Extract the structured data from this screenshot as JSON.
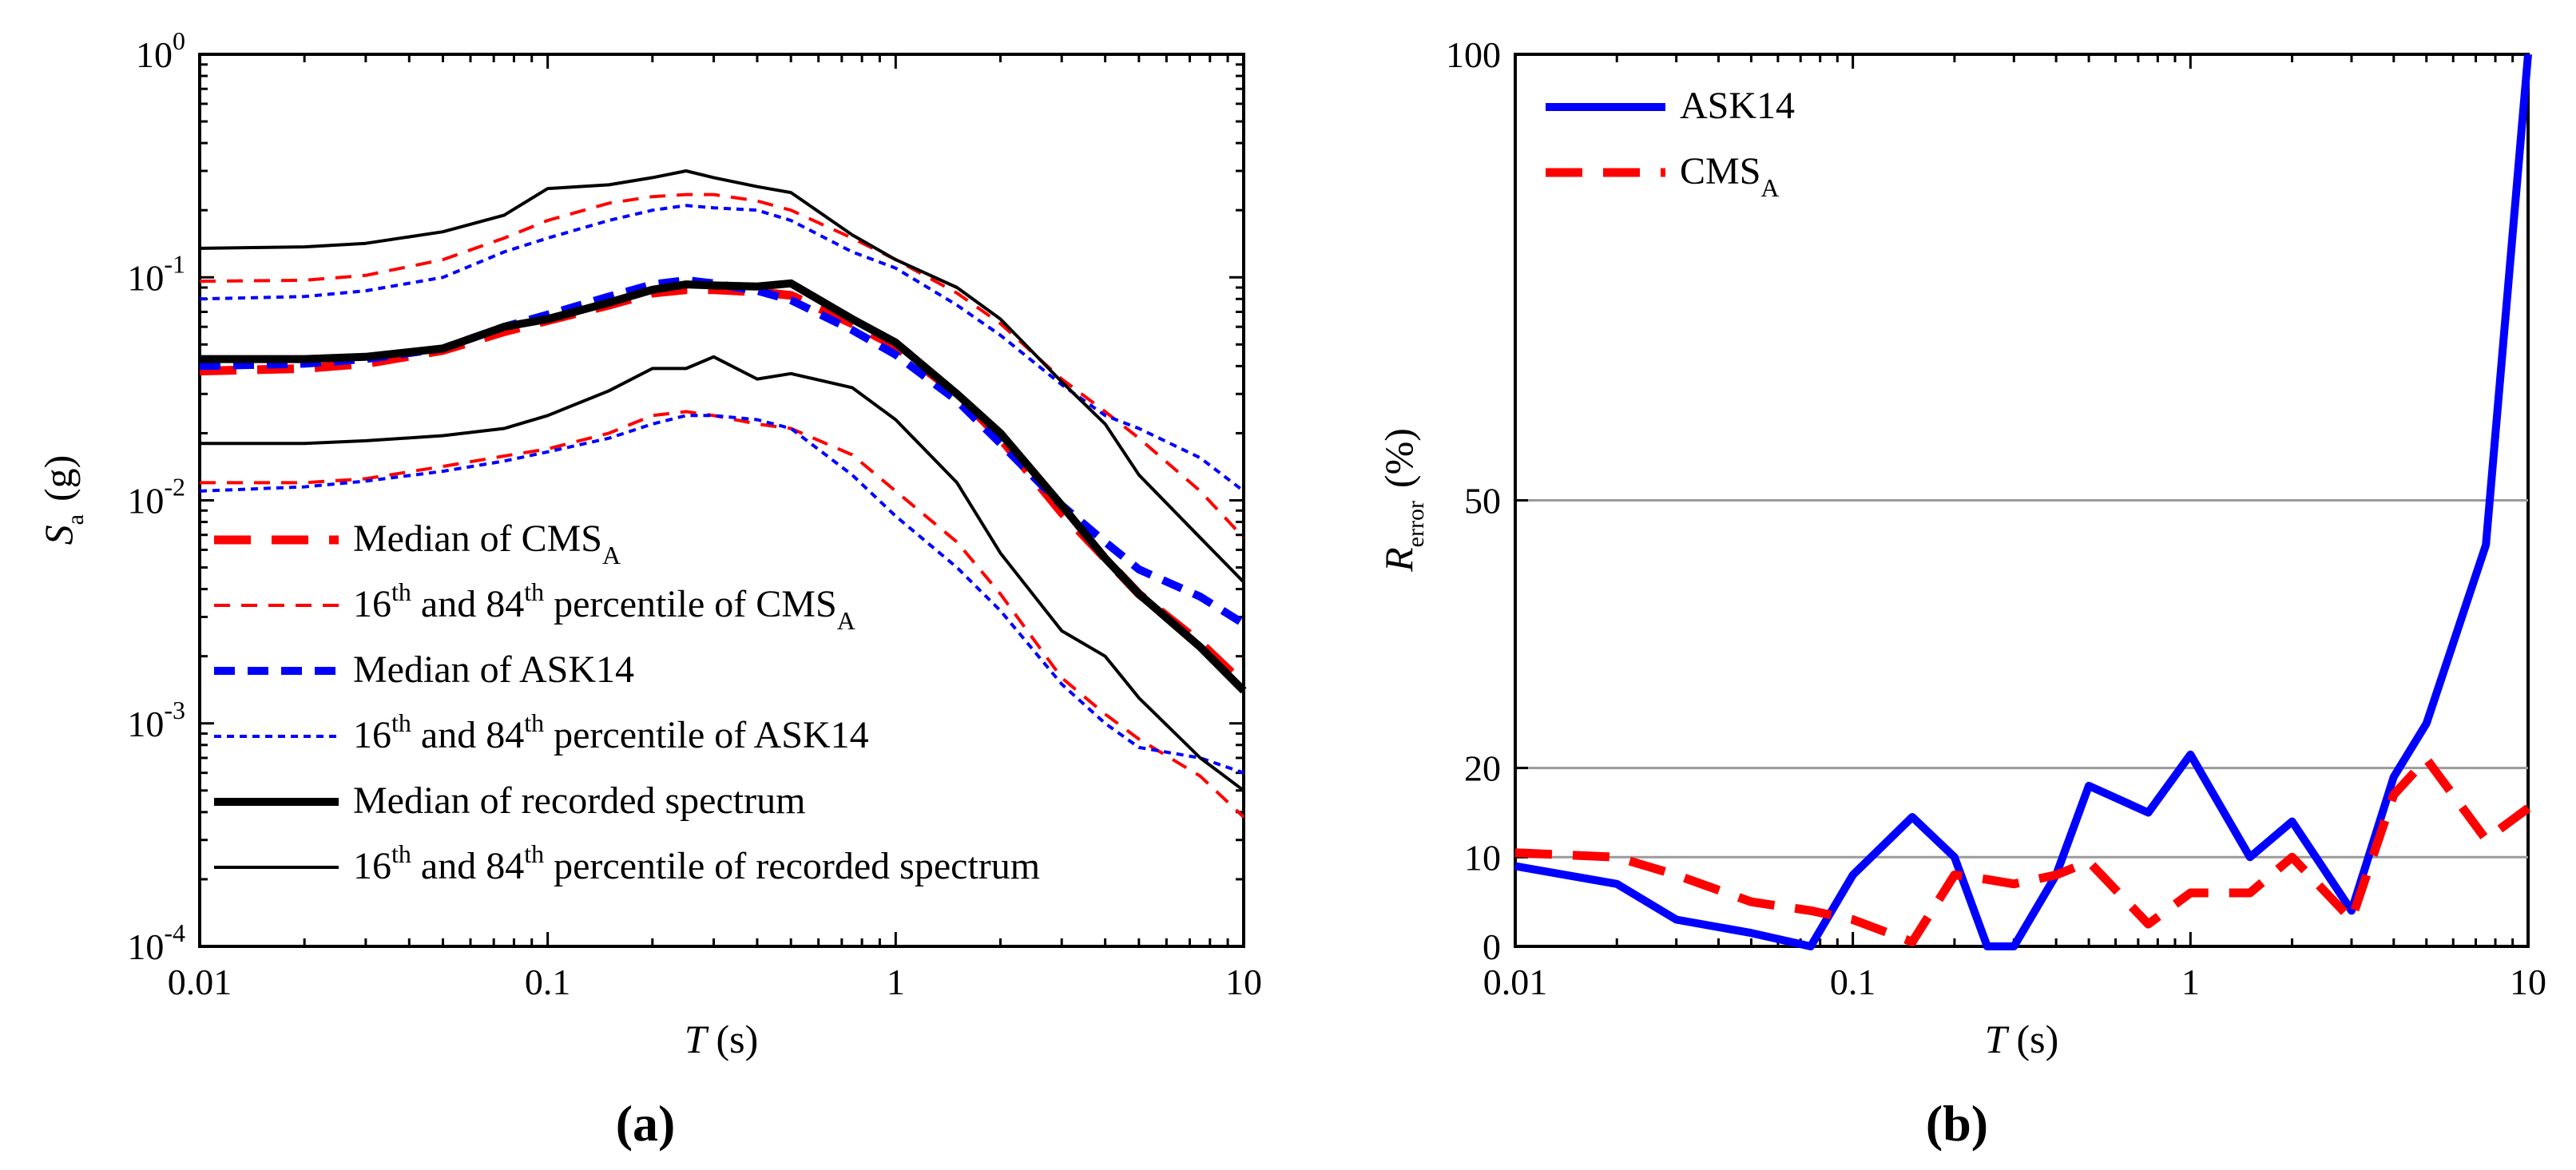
{
  "figure": {
    "panel_a_label": "(a)",
    "panel_b_label": "(b)"
  },
  "chart_data": [
    {
      "id": "a",
      "type": "line",
      "xscale": "log",
      "yscale": "log",
      "xlim": [
        0.01,
        10
      ],
      "ylim": [
        0.0001,
        1
      ],
      "xlabel": {
        "main": "T",
        "unit": "(s)"
      },
      "ylabel": {
        "main": "S",
        "sub": "a",
        "unit": "(g)"
      },
      "xticks": [
        {
          "v": 0.01,
          "label": "0.01"
        },
        {
          "v": 0.1,
          "label": "0.1"
        },
        {
          "v": 1,
          "label": "1"
        },
        {
          "v": 10,
          "label": "10"
        }
      ],
      "yticks": [
        {
          "v": 1,
          "base": "10",
          "exp": "0"
        },
        {
          "v": 0.1,
          "base": "10",
          "exp": "-1"
        },
        {
          "v": 0.01,
          "base": "10",
          "exp": "-2"
        },
        {
          "v": 0.001,
          "base": "10",
          "exp": "-3"
        },
        {
          "v": 0.0001,
          "base": "10",
          "exp": "-4"
        }
      ],
      "legend_position": "lower-left",
      "legend": [
        {
          "segments": [
            {
              "t": "Median of CMS"
            },
            {
              "t": "A",
              "sub": true
            }
          ],
          "series": "median_cms_a"
        },
        {
          "segments": [
            {
              "t": "16"
            },
            {
              "t": "th",
              "sup": true
            },
            {
              "t": " and 84"
            },
            {
              "t": "th",
              "sup": true
            },
            {
              "t": " percentile of CMS"
            },
            {
              "t": "A",
              "sub": true
            }
          ],
          "series": "p16_cms_a"
        },
        {
          "segments": [
            {
              "t": "Median of  ASK14"
            }
          ],
          "series": "median_ask14"
        },
        {
          "segments": [
            {
              "t": "16"
            },
            {
              "t": "th",
              "sup": true
            },
            {
              "t": " and 84"
            },
            {
              "t": "th",
              "sup": true
            },
            {
              "t": " percentile of ASK14"
            }
          ],
          "series": "p16_ask14"
        },
        {
          "segments": [
            {
              "t": "Median of recorded spectrum"
            }
          ],
          "series": "median_recorded"
        },
        {
          "segments": [
            {
              "t": "16"
            },
            {
              "t": "th",
              "sup": true
            },
            {
              "t": " and 84"
            },
            {
              "t": "th",
              "sup": true
            },
            {
              "t": " percentile of recorded spectrum"
            }
          ],
          "series": "p16_recorded"
        }
      ],
      "series": [
        {
          "key": "median_cms_a",
          "color": "#ff0000",
          "style": "long-dash",
          "width": "thick",
          "x": [
            0.01,
            0.02,
            0.03,
            0.05,
            0.075,
            0.1,
            0.15,
            0.2,
            0.25,
            0.3,
            0.4,
            0.5,
            0.75,
            1,
            1.5,
            2,
            3,
            4,
            5,
            7.5,
            10
          ],
          "y": [
            0.038,
            0.039,
            0.041,
            0.047,
            0.057,
            0.064,
            0.075,
            0.085,
            0.088,
            0.088,
            0.086,
            0.083,
            0.062,
            0.049,
            0.03,
            0.019,
            0.0088,
            0.0055,
            0.0038,
            0.0023,
            0.0015
          ]
        },
        {
          "key": "p84_cms_a",
          "color": "#ff0000",
          "style": "dash",
          "width": "thin",
          "x": [
            0.01,
            0.02,
            0.03,
            0.05,
            0.075,
            0.1,
            0.15,
            0.2,
            0.25,
            0.3,
            0.4,
            0.5,
            0.75,
            1,
            1.5,
            2,
            3,
            4,
            5,
            7.5,
            10
          ],
          "y": [
            0.096,
            0.097,
            0.102,
            0.12,
            0.15,
            0.18,
            0.215,
            0.23,
            0.235,
            0.235,
            0.22,
            0.2,
            0.15,
            0.12,
            0.085,
            0.062,
            0.035,
            0.025,
            0.019,
            0.011,
            0.0068
          ]
        },
        {
          "key": "p16_cms_a",
          "color": "#ff0000",
          "style": "dash",
          "width": "thin",
          "x": [
            0.01,
            0.02,
            0.03,
            0.05,
            0.075,
            0.1,
            0.15,
            0.2,
            0.25,
            0.3,
            0.4,
            0.5,
            0.75,
            1,
            1.5,
            2,
            3,
            4,
            5,
            7.5,
            10
          ],
          "y": [
            0.012,
            0.012,
            0.0125,
            0.0142,
            0.0158,
            0.017,
            0.02,
            0.024,
            0.025,
            0.024,
            0.022,
            0.021,
            0.016,
            0.011,
            0.0065,
            0.0038,
            0.0016,
            0.0011,
            0.00085,
            0.00058,
            0.00038
          ]
        },
        {
          "key": "median_ask14",
          "color": "#0000ff",
          "style": "dash",
          "width": "thick",
          "x": [
            0.01,
            0.02,
            0.03,
            0.05,
            0.075,
            0.1,
            0.15,
            0.2,
            0.25,
            0.3,
            0.4,
            0.5,
            0.75,
            1,
            1.5,
            2,
            3,
            4,
            5,
            7.5,
            10
          ],
          "y": [
            0.04,
            0.041,
            0.043,
            0.048,
            0.06,
            0.068,
            0.082,
            0.093,
            0.097,
            0.094,
            0.087,
            0.079,
            0.058,
            0.045,
            0.028,
            0.018,
            0.0095,
            0.0065,
            0.0049,
            0.0037,
            0.0028
          ]
        },
        {
          "key": "p84_ask14",
          "color": "#0000ff",
          "style": "dot",
          "width": "thin",
          "x": [
            0.01,
            0.02,
            0.03,
            0.05,
            0.075,
            0.1,
            0.15,
            0.2,
            0.25,
            0.3,
            0.4,
            0.5,
            0.75,
            1,
            1.5,
            2,
            3,
            4,
            5,
            7.5,
            10
          ],
          "y": [
            0.08,
            0.082,
            0.087,
            0.1,
            0.13,
            0.15,
            0.18,
            0.2,
            0.21,
            0.205,
            0.2,
            0.18,
            0.13,
            0.11,
            0.075,
            0.055,
            0.033,
            0.024,
            0.021,
            0.0155,
            0.011
          ]
        },
        {
          "key": "p16_ask14",
          "color": "#0000ff",
          "style": "dot",
          "width": "thin",
          "x": [
            0.01,
            0.02,
            0.03,
            0.05,
            0.075,
            0.1,
            0.15,
            0.2,
            0.25,
            0.3,
            0.4,
            0.5,
            0.75,
            1,
            1.5,
            2,
            3,
            4,
            5,
            7.5,
            10
          ],
          "y": [
            0.011,
            0.0115,
            0.0122,
            0.0135,
            0.015,
            0.0165,
            0.019,
            0.022,
            0.024,
            0.024,
            0.023,
            0.021,
            0.013,
            0.0085,
            0.005,
            0.0032,
            0.0015,
            0.001,
            0.00078,
            0.0007,
            0.0006
          ]
        },
        {
          "key": "median_recorded",
          "color": "#000000",
          "style": "solid",
          "width": "thick",
          "x": [
            0.01,
            0.02,
            0.03,
            0.05,
            0.075,
            0.1,
            0.15,
            0.2,
            0.25,
            0.3,
            0.4,
            0.5,
            0.75,
            1,
            1.5,
            2,
            3,
            4,
            5,
            7.5,
            10
          ],
          "y": [
            0.043,
            0.043,
            0.044,
            0.048,
            0.06,
            0.065,
            0.077,
            0.088,
            0.093,
            0.092,
            0.091,
            0.094,
            0.065,
            0.051,
            0.03,
            0.02,
            0.0095,
            0.0055,
            0.0038,
            0.0022,
            0.0014
          ]
        },
        {
          "key": "p84_recorded",
          "color": "#000000",
          "style": "solid",
          "width": "thin",
          "x": [
            0.01,
            0.02,
            0.03,
            0.05,
            0.075,
            0.1,
            0.15,
            0.2,
            0.25,
            0.3,
            0.4,
            0.5,
            0.75,
            1,
            1.5,
            2,
            3,
            4,
            5,
            7.5,
            10
          ],
          "y": [
            0.135,
            0.137,
            0.142,
            0.16,
            0.19,
            0.25,
            0.26,
            0.28,
            0.3,
            0.28,
            0.255,
            0.24,
            0.155,
            0.12,
            0.09,
            0.065,
            0.034,
            0.022,
            0.013,
            0.0068,
            0.0043
          ]
        },
        {
          "key": "p16_recorded",
          "color": "#000000",
          "style": "solid",
          "width": "thin",
          "x": [
            0.01,
            0.02,
            0.03,
            0.05,
            0.075,
            0.1,
            0.15,
            0.2,
            0.25,
            0.3,
            0.4,
            0.5,
            0.75,
            1,
            1.5,
            2,
            3,
            4,
            5,
            7.5,
            10
          ],
          "y": [
            0.018,
            0.018,
            0.0185,
            0.0195,
            0.021,
            0.024,
            0.031,
            0.039,
            0.039,
            0.044,
            0.035,
            0.037,
            0.032,
            0.023,
            0.012,
            0.0058,
            0.0026,
            0.002,
            0.0013,
            0.0007,
            0.0005
          ]
        }
      ]
    },
    {
      "id": "b",
      "type": "line",
      "xscale": "log",
      "yscale": "linear",
      "xlim": [
        0.01,
        10
      ],
      "ylim": [
        0,
        100
      ],
      "xlabel": {
        "main": "T",
        "unit": "(s)"
      },
      "ylabel": {
        "main": "R",
        "sub": "error",
        "unit": "(%)"
      },
      "xticks": [
        {
          "v": 0.01,
          "label": "0.01"
        },
        {
          "v": 0.1,
          "label": "0.1"
        },
        {
          "v": 1,
          "label": "1"
        },
        {
          "v": 10,
          "label": "10"
        }
      ],
      "yticks": [
        {
          "v": 0,
          "label": "0"
        },
        {
          "v": 10,
          "label": "10"
        },
        {
          "v": 20,
          "label": "20"
        },
        {
          "v": 50,
          "label": "50"
        },
        {
          "v": 100,
          "label": "100"
        }
      ],
      "gridlines_y": [
        10,
        20,
        50
      ],
      "legend_position": "top-left",
      "legend": [
        {
          "segments": [
            {
              "t": "ASK14"
            }
          ],
          "series": "ask14"
        },
        {
          "segments": [
            {
              "t": "CMS"
            },
            {
              "t": "A",
              "sub": true
            }
          ],
          "series": "cms_a"
        }
      ],
      "series": [
        {
          "key": "ask14",
          "color": "#0000ff",
          "style": "solid",
          "width": "thick",
          "x": [
            0.01,
            0.02,
            0.03,
            0.05,
            0.075,
            0.1,
            0.15,
            0.2,
            0.25,
            0.3,
            0.4,
            0.5,
            0.75,
            1,
            1.5,
            2,
            3,
            4,
            5,
            7.5,
            10
          ],
          "y": [
            9,
            7,
            3,
            1.5,
            0,
            8,
            14.5,
            10,
            0,
            0,
            8,
            18,
            15,
            21.5,
            10,
            14,
            4,
            19,
            25,
            45,
            100
          ]
        },
        {
          "key": "cms_a",
          "color": "#ff0000",
          "style": "long-dash",
          "width": "thick",
          "x": [
            0.01,
            0.02,
            0.03,
            0.05,
            0.075,
            0.1,
            0.15,
            0.2,
            0.25,
            0.3,
            0.4,
            0.5,
            0.75,
            1,
            1.5,
            2,
            3,
            4,
            5,
            7.5,
            10
          ],
          "y": [
            10.5,
            10,
            8,
            5,
            4,
            3,
            0.5,
            8,
            7.5,
            7,
            8,
            9.5,
            2.5,
            6,
            6,
            10,
            3,
            17,
            21,
            12,
            15.5
          ]
        }
      ]
    }
  ]
}
